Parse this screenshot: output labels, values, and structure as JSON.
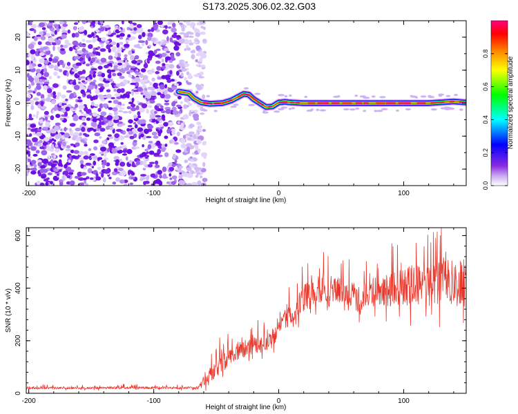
{
  "title": "S173.2025.306.02.32.G03",
  "chart_data": [
    {
      "type": "heatmap",
      "title": "S173.2025.306.02.32.G03",
      "xlabel": "Height of straight line (km)",
      "ylabel": "Frequency (Hz)",
      "xlim": [
        -202,
        150
      ],
      "ylim": [
        -25,
        25
      ],
      "xticks": [
        -200,
        -100,
        0,
        100
      ],
      "yticks": [
        -20,
        -10,
        0,
        10,
        20
      ],
      "colorbar": {
        "label": "Normalized spectral amplitude",
        "range": [
          0,
          1
        ],
        "ticks": [
          0.0,
          0.2,
          0.4,
          0.6,
          0.8
        ],
        "tick_labels": [
          "0.0",
          "0.2",
          "0.4",
          "0.6",
          "0.8"
        ],
        "colormap": [
          "#ffffff",
          "#8a2be2",
          "#0000ff",
          "#00ffff",
          "#00ff00",
          "#ffff00",
          "#ff8000",
          "#ff0000",
          "#ff0080"
        ]
      },
      "noise_region": {
        "x_from": -202,
        "x_to": -65,
        "frequency_from": -25,
        "frequency_to": 25,
        "amplitude": "0.0-0.2"
      },
      "signal_track": {
        "x": [
          -80,
          -72,
          -68,
          -62,
          -55,
          -45,
          -38,
          -32,
          -28,
          -24,
          -20,
          -15,
          -10,
          -5,
          0,
          5,
          10,
          20,
          40,
          60,
          80,
          100,
          120,
          140,
          150
        ],
        "frequency": [
          3.5,
          3.0,
          1.5,
          0.2,
          -0.2,
          0.0,
          0.8,
          2.0,
          2.8,
          2.6,
          1.2,
          0.0,
          -1.2,
          -1.0,
          0.2,
          0.4,
          0.2,
          0.0,
          0.0,
          0.0,
          0.0,
          0.0,
          0.0,
          0.5,
          0.2
        ],
        "peak_amplitude": 1.0
      }
    },
    {
      "type": "line",
      "title": "",
      "xlabel": "Height of straight line (km)",
      "ylabel": "SNR (10 * v/v)",
      "xlim": [
        -202,
        150
      ],
      "ylim": [
        0,
        630
      ],
      "xticks": [
        -200,
        -100,
        0,
        100
      ],
      "yticks": [
        0,
        200,
        400,
        600
      ],
      "series": [
        {
          "name": "SNR",
          "color": "#e8362a",
          "x": [
            -202,
            -180,
            -160,
            -140,
            -120,
            -100,
            -80,
            -70,
            -65,
            -60,
            -55,
            -50,
            -45,
            -40,
            -35,
            -30,
            -25,
            -20,
            -15,
            -10,
            -5,
            0,
            5,
            10,
            15,
            20,
            25,
            30,
            40,
            50,
            60,
            65,
            70,
            80,
            90,
            100,
            110,
            120,
            130,
            140,
            150
          ],
          "mean": [
            20,
            20,
            20,
            20,
            22,
            21,
            20,
            22,
            20,
            40,
            70,
            95,
            115,
            140,
            150,
            165,
            175,
            185,
            185,
            190,
            205,
            245,
            280,
            300,
            330,
            360,
            380,
            395,
            400,
            390,
            380,
            330,
            375,
            395,
            400,
            405,
            410,
            410,
            415,
            420,
            425
          ],
          "spread": [
            8,
            8,
            8,
            8,
            8,
            8,
            8,
            8,
            10,
            30,
            50,
            60,
            65,
            65,
            60,
            60,
            60,
            60,
            55,
            55,
            60,
            60,
            65,
            65,
            75,
            90,
            100,
            100,
            90,
            85,
            90,
            80,
            95,
            110,
            130,
            140,
            145,
            150,
            160,
            170,
            170
          ]
        }
      ]
    }
  ]
}
